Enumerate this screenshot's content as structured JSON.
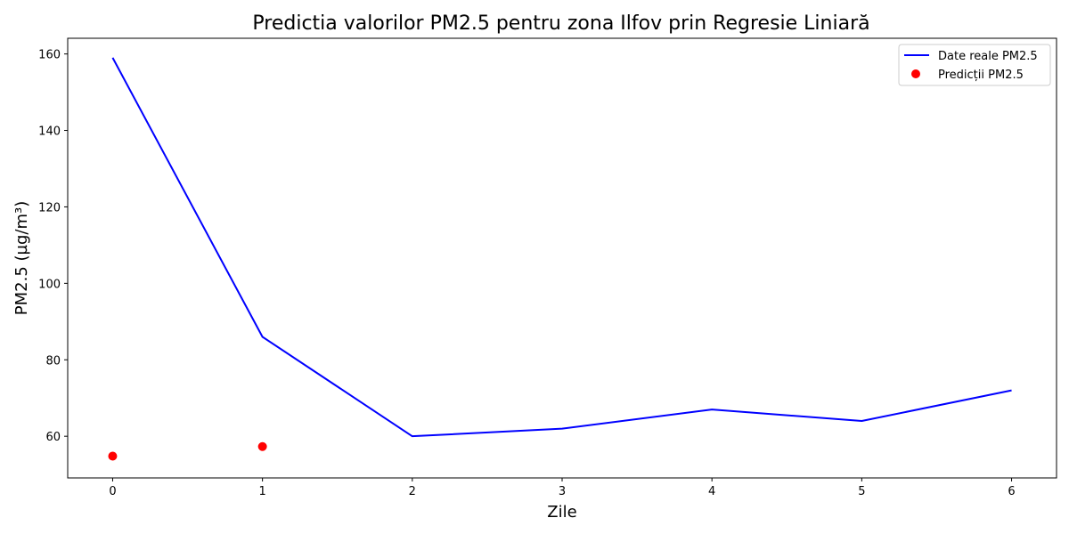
{
  "chart_data": {
    "type": "line",
    "title": "Predictia valorilor PM2.5 pentru zona Ilfov prin Regresie Liniară",
    "xlabel": "Zile",
    "ylabel": "PM2.5 (µg/m³)",
    "xlim": [
      -0.3,
      6.3
    ],
    "ylim": [
      49.1,
      164.1
    ],
    "x_ticks": [
      0,
      1,
      2,
      3,
      4,
      5,
      6
    ],
    "y_ticks": [
      60,
      80,
      100,
      120,
      140,
      160
    ],
    "grid": false,
    "legend_position": "top-right",
    "series": [
      {
        "name": "Date reale PM2.5",
        "kind": "line",
        "color": "#0000ff",
        "x": [
          0,
          1,
          2,
          3,
          4,
          5,
          6
        ],
        "y": [
          159,
          86,
          60,
          62,
          67,
          64,
          72
        ]
      },
      {
        "name": "Predicții PM2.5",
        "kind": "scatter",
        "color": "#ff0000",
        "x": [
          0,
          1
        ],
        "y": [
          54.8,
          57.3
        ]
      }
    ]
  }
}
